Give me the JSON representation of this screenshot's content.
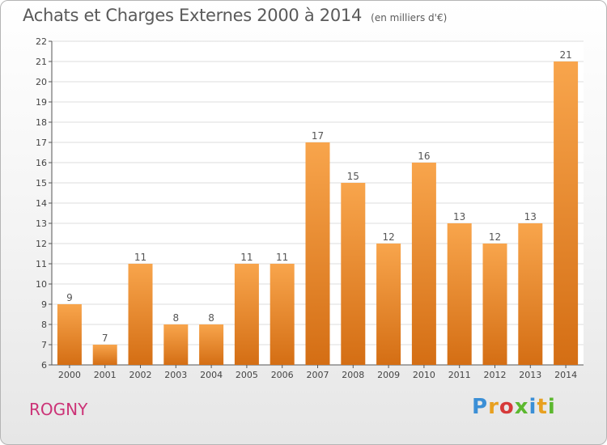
{
  "chart_data": {
    "type": "bar",
    "title": "Achats et Charges Externes 2000 à 2014",
    "unit": "(en milliers d'€)",
    "xlabel": "",
    "ylabel": "",
    "categories": [
      "2000",
      "2001",
      "2002",
      "2003",
      "2004",
      "2005",
      "2006",
      "2007",
      "2008",
      "2009",
      "2010",
      "2011",
      "2012",
      "2013",
      "2014"
    ],
    "values": [
      9,
      7,
      11,
      8,
      8,
      11,
      11,
      17,
      15,
      12,
      16,
      13,
      12,
      13,
      21
    ],
    "ylim": [
      6,
      22
    ],
    "yticks": [
      6,
      7,
      8,
      9,
      10,
      11,
      12,
      13,
      14,
      15,
      16,
      17,
      18,
      19,
      20,
      21,
      22
    ],
    "grid": true,
    "bar_color": "#f0923a"
  },
  "commune": "ROGNY",
  "logo": {
    "text": "Proxiti"
  }
}
